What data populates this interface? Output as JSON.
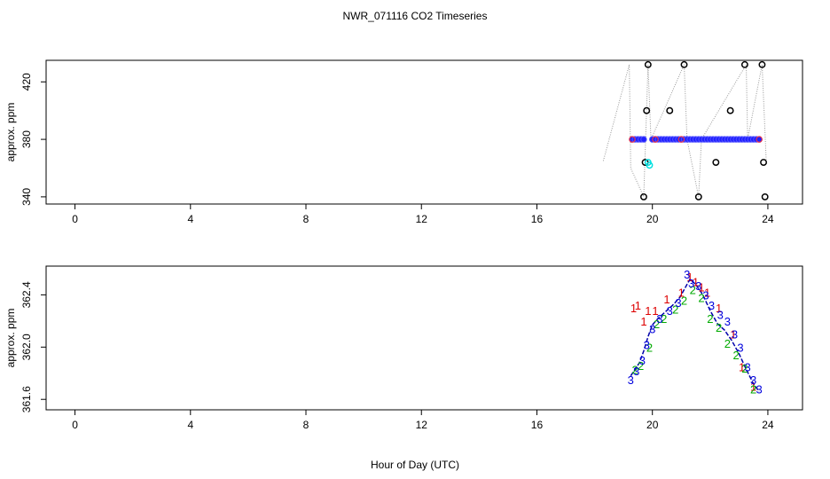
{
  "title": "NWR_071116  CO2 Timeseries",
  "xlabel": "Hour of Day (UTC)",
  "chart_data": [
    {
      "type": "scatter",
      "name": "top-panel",
      "ylabel": "approx. ppm",
      "xlim": [
        -1,
        25.2
      ],
      "ylim": [
        335,
        435
      ],
      "xticks": [
        0,
        4,
        8,
        12,
        16,
        20,
        24
      ],
      "xtick_labels": [
        "0",
        "4",
        "8",
        "12",
        "16",
        "20",
        "24"
      ],
      "yticks": [
        340,
        380,
        420
      ],
      "ytick_labels": [
        "340",
        "380",
        "420"
      ],
      "colors": {
        "outlier": "#000000",
        "main": "#1f1fff",
        "edge": "#ff3030",
        "cyan": "#00e0e0",
        "line": "#999999"
      },
      "dotted_line": [
        [
          18.3,
          365
        ],
        [
          19.2,
          432
        ],
        [
          19.25,
          360
        ],
        [
          19.7,
          340
        ],
        [
          19.85,
          432
        ],
        [
          19.95,
          380
        ],
        [
          21.1,
          432
        ],
        [
          21.2,
          380
        ],
        [
          21.6,
          340
        ],
        [
          21.7,
          380
        ],
        [
          23.25,
          432
        ],
        [
          23.3,
          380
        ],
        [
          23.8,
          432
        ],
        [
          23.95,
          362
        ]
      ],
      "main_points": {
        "x": [
          19.3,
          19.4,
          19.5,
          19.6,
          19.7,
          20.0,
          20.1,
          20.2,
          20.3,
          20.4,
          20.5,
          20.6,
          20.7,
          20.8,
          20.9,
          21.0,
          21.1,
          21.2,
          21.3,
          21.4,
          21.5,
          21.6,
          21.7,
          21.8,
          21.9,
          22.0,
          22.1,
          22.2,
          22.3,
          22.4,
          22.5,
          22.6,
          22.7,
          22.8,
          22.9,
          23.0,
          23.1,
          23.2,
          23.3,
          23.4,
          23.5,
          23.6,
          23.7
        ],
        "y": [
          382.3,
          382.2,
          382.1,
          382.2,
          382.0,
          382.0,
          382.1,
          382.2,
          382.2,
          382.3,
          382.2,
          382.3,
          382.2,
          382.3,
          382.4,
          382.4,
          382.5,
          382.5,
          382.4,
          382.5,
          382.4,
          382.4,
          382.3,
          382.3,
          382.2,
          382.1,
          382.0,
          382.0,
          382.1,
          382.0,
          382.1,
          382.0,
          382.1,
          382.0,
          381.9,
          381.9,
          381.8,
          381.8,
          381.7,
          381.7,
          381.7,
          381.6,
          381.6
        ]
      },
      "outlier_points": {
        "x": [
          19.7,
          19.75,
          19.8,
          19.85,
          20.6,
          21.1,
          21.6,
          22.2,
          22.7,
          23.2,
          23.8,
          23.85,
          23.9
        ],
        "y": [
          340,
          364,
          400,
          432,
          400,
          432,
          340,
          364,
          400,
          432,
          432,
          364,
          340
        ]
      },
      "cyan_points": {
        "x": [
          19.85,
          19.9
        ],
        "y": [
          364,
          362
        ]
      }
    },
    {
      "type": "scatter",
      "name": "bottom-panel",
      "ylabel": "approx. ppm",
      "xlim": [
        -1,
        25.2
      ],
      "ylim": [
        361.52,
        362.62
      ],
      "xticks": [
        0,
        4,
        8,
        12,
        16,
        20,
        24
      ],
      "xtick_labels": [
        "0",
        "4",
        "8",
        "12",
        "16",
        "20",
        "24"
      ],
      "yticks": [
        361.6,
        362.0,
        362.4
      ],
      "ytick_labels": [
        "361.6",
        "362.0",
        "362.4"
      ],
      "colors": {
        "1": "#dd0000",
        "2": "#00aa00",
        "3": "#0000dd",
        "line": "#0000aa"
      },
      "series": [
        {
          "symbol": "1",
          "x": [
            19.35,
            19.5,
            19.7,
            19.85,
            20.1,
            20.5,
            21.0,
            21.3,
            21.5,
            21.7,
            21.9,
            22.3,
            22.8,
            23.1,
            23.5
          ],
          "y": [
            362.3,
            362.32,
            362.2,
            362.28,
            362.28,
            362.37,
            362.42,
            362.54,
            362.5,
            362.46,
            362.42,
            362.3,
            362.1,
            361.85,
            361.7
          ]
        },
        {
          "symbol": "2",
          "x": [
            19.4,
            19.6,
            19.9,
            20.15,
            20.4,
            20.8,
            21.1,
            21.4,
            21.7,
            22.0,
            22.3,
            22.6,
            22.9,
            23.2,
            23.5
          ],
          "y": [
            361.83,
            361.86,
            362.0,
            362.18,
            362.22,
            362.29,
            362.36,
            362.44,
            362.38,
            362.22,
            362.15,
            362.03,
            361.94,
            361.84,
            361.68
          ]
        },
        {
          "symbol": "3",
          "x": [
            19.25,
            19.45,
            19.65,
            19.8,
            20.0,
            20.25,
            20.6,
            20.9,
            21.2,
            21.35,
            21.6,
            21.85,
            22.05,
            22.35,
            22.6,
            22.85,
            23.05,
            23.3,
            23.5,
            23.7
          ],
          "y": [
            361.75,
            361.82,
            361.9,
            362.02,
            362.14,
            362.22,
            362.28,
            362.34,
            362.56,
            362.49,
            362.47,
            362.4,
            362.32,
            362.25,
            362.2,
            362.1,
            362.0,
            361.85,
            361.75,
            361.68
          ]
        }
      ],
      "line": {
        "x": [
          19.25,
          19.4,
          19.55,
          19.7,
          19.85,
          20.0,
          20.2,
          20.45,
          20.7,
          20.95,
          21.15,
          21.3,
          21.5,
          21.75,
          22.0,
          22.25,
          22.5,
          22.75,
          23.0,
          23.25,
          23.5,
          23.7
        ],
        "y": [
          361.78,
          361.83,
          361.88,
          361.97,
          362.08,
          362.17,
          362.22,
          362.27,
          362.32,
          362.38,
          362.46,
          362.52,
          362.48,
          362.4,
          362.28,
          362.18,
          362.13,
          362.05,
          361.95,
          361.83,
          361.72,
          361.66
        ]
      }
    }
  ]
}
